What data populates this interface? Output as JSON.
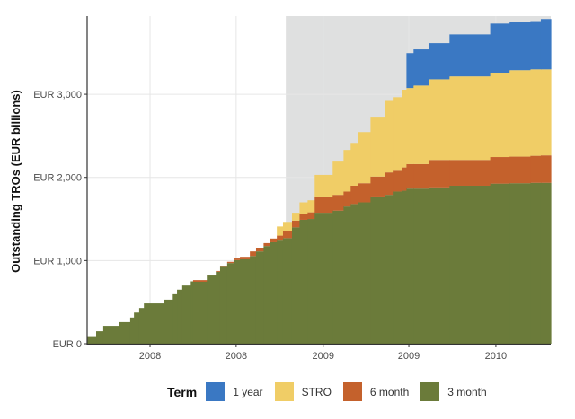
{
  "chart_data": {
    "type": "area",
    "stacked": true,
    "step": true,
    "title": "",
    "xlabel": "",
    "ylabel": "Outstanding TROs (EUR billions)",
    "xlim": [
      "2007-08-21",
      "2010-04-27"
    ],
    "ylim": [
      0,
      3940
    ],
    "grid": true,
    "legend_position": "bottom",
    "legend_title": "Term",
    "shaded_region": {
      "start": "2008-10-14",
      "end": "2010-04-27",
      "color": "#dfe0e0"
    },
    "x_ticks": [
      {
        "value": "2008-01-01",
        "label": "2008"
      },
      {
        "value": "2008-07-01",
        "label": "2008"
      },
      {
        "value": "2009-01-01",
        "label": "2009"
      },
      {
        "value": "2009-07-01",
        "label": "2009"
      },
      {
        "value": "2010-01-01",
        "label": "2010"
      }
    ],
    "y_ticks": [
      {
        "value": 0,
        "label": "EUR 0"
      },
      {
        "value": 1000,
        "label": "EUR 1,000"
      },
      {
        "value": 2000,
        "label": "EUR 2,000"
      },
      {
        "value": 3000,
        "label": "EUR 3,000"
      }
    ],
    "dates": [
      "2007-08-21",
      "2007-09-09",
      "2007-09-24",
      "2007-10-28",
      "2007-11-20",
      "2007-11-28",
      "2007-12-09",
      "2007-12-19",
      "2008-01-30",
      "2008-02-18",
      "2008-02-27",
      "2008-03-09",
      "2008-03-27",
      "2008-04-01",
      "2008-04-30",
      "2008-05-19",
      "2008-05-28",
      "2008-06-12",
      "2008-06-26",
      "2008-07-09",
      "2008-07-30",
      "2008-08-12",
      "2008-08-28",
      "2008-09-10",
      "2008-09-25",
      "2008-10-08",
      "2008-10-27",
      "2008-11-12",
      "2008-11-29",
      "2008-12-14",
      "2009-01-21",
      "2009-02-13",
      "2009-02-28",
      "2009-03-15",
      "2009-04-11",
      "2009-05-11",
      "2009-05-28",
      "2009-06-16",
      "2009-06-26",
      "2009-07-11",
      "2009-08-12",
      "2009-09-25",
      "2009-12-20",
      "2010-01-30",
      "2010-03-15",
      "2010-04-06"
    ],
    "series": [
      {
        "name": "3 month",
        "color": "#6b7b3a",
        "values": [
          80,
          150,
          215,
          260,
          315,
          375,
          430,
          485,
          530,
          595,
          650,
          700,
          750,
          745,
          820,
          865,
          925,
          970,
          1005,
          1015,
          1055,
          1110,
          1175,
          1220,
          1240,
          1270,
          1400,
          1490,
          1500,
          1575,
          1600,
          1650,
          1680,
          1700,
          1760,
          1790,
          1830,
          1840,
          1865,
          1865,
          1880,
          1900,
          1925,
          1930,
          1935,
          1935
        ]
      },
      {
        "name": "6 month",
        "color": "#c4612c",
        "values": [
          0,
          0,
          0,
          0,
          0,
          0,
          0,
          0,
          0,
          0,
          0,
          0,
          0,
          20,
          10,
          10,
          10,
          15,
          20,
          30,
          55,
          45,
          35,
          45,
          60,
          90,
          80,
          75,
          80,
          185,
          190,
          180,
          220,
          230,
          250,
          270,
          250,
          280,
          295,
          295,
          330,
          310,
          320,
          320,
          325,
          330
        ]
      },
      {
        "name": "STRO",
        "color": "#f0cd66",
        "values": [
          0,
          0,
          0,
          0,
          0,
          0,
          0,
          0,
          0,
          0,
          0,
          0,
          0,
          0,
          0,
          0,
          0,
          0,
          0,
          0,
          0,
          0,
          0,
          0,
          110,
          105,
          95,
          135,
          145,
          270,
          400,
          500,
          515,
          615,
          720,
          860,
          885,
          935,
          915,
          945,
          970,
          1005,
          1015,
          1040,
          1040,
          1035
        ]
      },
      {
        "name": "1 year",
        "color": "#3a78c3",
        "values": [
          0,
          0,
          0,
          0,
          0,
          0,
          0,
          0,
          0,
          0,
          0,
          0,
          0,
          0,
          0,
          0,
          0,
          0,
          0,
          0,
          0,
          0,
          0,
          0,
          0,
          0,
          0,
          0,
          0,
          0,
          0,
          0,
          0,
          0,
          0,
          0,
          0,
          0,
          420,
          435,
          435,
          505,
          590,
          580,
          580,
          605
        ]
      }
    ],
    "legend_order": [
      "1 year",
      "STRO",
      "6 month",
      "3 month"
    ]
  }
}
